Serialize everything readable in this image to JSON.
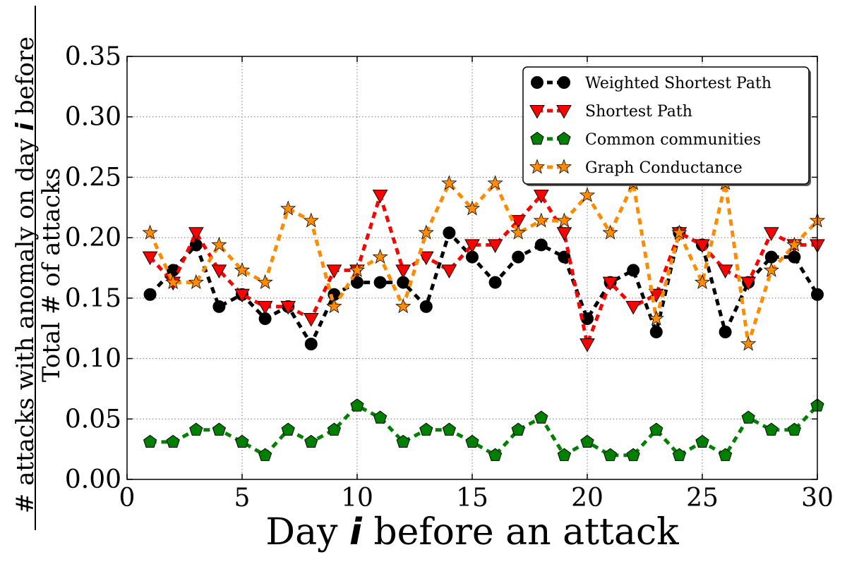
{
  "chart_data": {
    "type": "line",
    "xlabel": {
      "before": "Day ",
      "var": "i",
      "after": " before an attack"
    },
    "ylabel": {
      "numerator_before": "# attacks with anomaly on day ",
      "numerator_var": "i",
      "numerator_after": " before",
      "denominator": "Total # of attacks"
    },
    "xlim": [
      0,
      30
    ],
    "ylim": [
      0,
      0.35
    ],
    "xticks": [
      "0",
      "5",
      "10",
      "15",
      "20",
      "25",
      "30"
    ],
    "yticks": [
      "0.00",
      "0.05",
      "0.10",
      "0.15",
      "0.20",
      "0.25",
      "0.30",
      "0.35"
    ],
    "grid": true,
    "legend_position": "top-right",
    "x": [
      1,
      2,
      3,
      4,
      5,
      6,
      7,
      8,
      9,
      10,
      11,
      12,
      13,
      14,
      15,
      16,
      17,
      18,
      19,
      20,
      21,
      22,
      23,
      24,
      25,
      26,
      27,
      28,
      29,
      30
    ],
    "series": [
      {
        "name": "Weighted Shortest Path",
        "color": "#000000",
        "marker": "circle",
        "values": [
          0.153,
          0.173,
          0.194,
          0.143,
          0.153,
          0.133,
          0.143,
          0.112,
          0.153,
          0.163,
          0.163,
          0.163,
          0.143,
          0.204,
          0.184,
          0.163,
          0.184,
          0.194,
          0.184,
          0.133,
          0.163,
          0.173,
          0.122,
          0.204,
          0.194,
          0.122,
          0.163,
          0.184,
          0.184,
          0.153
        ]
      },
      {
        "name": "Shortest Path",
        "color": "#ff0000",
        "marker": "triangle-down",
        "values": [
          0.184,
          0.163,
          0.204,
          0.173,
          0.153,
          0.143,
          0.143,
          0.133,
          0.173,
          0.173,
          0.235,
          0.173,
          0.184,
          0.173,
          0.194,
          0.194,
          0.214,
          0.235,
          0.204,
          0.112,
          0.163,
          0.143,
          0.153,
          0.204,
          0.194,
          0.173,
          0.163,
          0.204,
          0.194,
          0.194
        ]
      },
      {
        "name": "Common communities",
        "color": "#008000",
        "marker": "pentagon",
        "values": [
          0.031,
          0.031,
          0.041,
          0.041,
          0.031,
          0.02,
          0.041,
          0.031,
          0.041,
          0.061,
          0.051,
          0.031,
          0.041,
          0.041,
          0.031,
          0.02,
          0.041,
          0.051,
          0.02,
          0.031,
          0.02,
          0.02,
          0.041,
          0.02,
          0.031,
          0.02,
          0.051,
          0.041,
          0.041,
          0.061
        ]
      },
      {
        "name": "Graph Conductance",
        "color": "#ff8c00",
        "marker": "star",
        "values": [
          0.204,
          0.163,
          0.163,
          0.194,
          0.173,
          0.163,
          0.224,
          0.214,
          0.143,
          0.173,
          0.184,
          0.143,
          0.204,
          0.245,
          0.224,
          0.245,
          0.204,
          0.214,
          0.214,
          0.235,
          0.204,
          0.245,
          0.133,
          0.204,
          0.163,
          0.245,
          0.112,
          0.173,
          0.194,
          0.214
        ]
      }
    ]
  }
}
